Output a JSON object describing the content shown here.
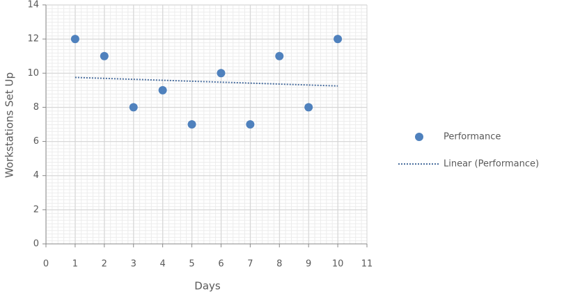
{
  "chart_data": {
    "type": "scatter",
    "y_label": "Workstations Set Up",
    "x_label": "Days",
    "series": [
      {
        "name": "Performance",
        "type": "scatter",
        "color": "#4f81bd",
        "x": [
          1,
          2,
          3,
          4,
          5,
          6,
          7,
          8,
          9,
          10
        ],
        "values": [
          12,
          11,
          8,
          9,
          7,
          10,
          7,
          11,
          8,
          12
        ]
      },
      {
        "name": "Linear (Performance)",
        "type": "line",
        "color": "#4a6e9e",
        "dash": "dotted",
        "x": [
          1,
          10
        ],
        "values": [
          9.75,
          9.25
        ]
      }
    ],
    "xlim": [
      0,
      11
    ],
    "xticks": [
      0,
      1,
      2,
      3,
      4,
      5,
      6,
      7,
      8,
      9,
      10,
      11
    ],
    "ylim": [
      0,
      14
    ],
    "yticks": [
      0,
      2,
      4,
      6,
      8,
      10,
      12,
      14
    ],
    "grid": true,
    "legend": "right"
  }
}
